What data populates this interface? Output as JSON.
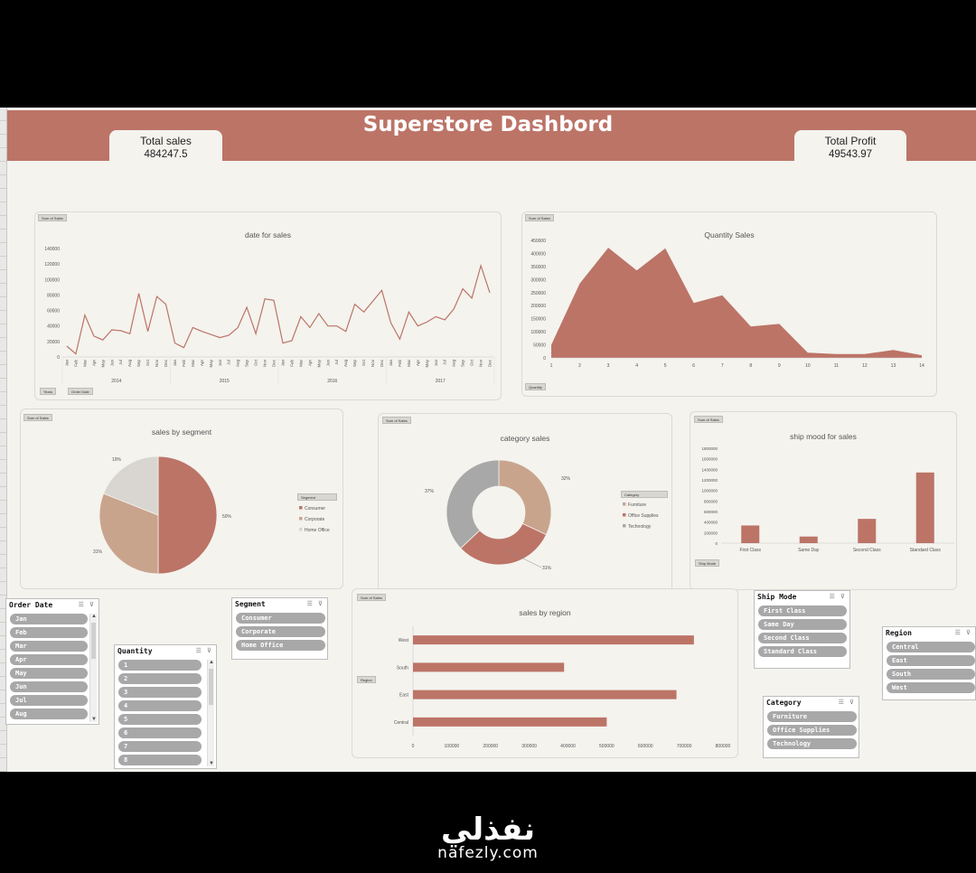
{
  "dashboard": {
    "title": "Superstore Dashbord",
    "kpis": {
      "total_sales": {
        "label": "Total sales",
        "value": "484247.5"
      },
      "total_profit": {
        "label": "Total Profit",
        "value": "49543.97"
      }
    },
    "accent_color": "#bc7467"
  },
  "charts": {
    "date_sales": {
      "chip": "Sum of Sales",
      "title": "date for sales",
      "y_ticks": [
        "140000",
        "120000",
        "100000",
        "80000",
        "60000",
        "40000",
        "20000",
        "0"
      ],
      "months": [
        "Jan",
        "Feb",
        "Mar",
        "Apr",
        "May",
        "Jun",
        "Jul",
        "Aug",
        "Sep",
        "Oct",
        "Nov",
        "Dec"
      ],
      "years": [
        "2014",
        "2015",
        "2016",
        "2017"
      ],
      "values": [
        14000,
        4000,
        54000,
        27000,
        22000,
        35000,
        34000,
        30000,
        82000,
        33000,
        78000,
        68000,
        18000,
        12000,
        38000,
        33000,
        29000,
        25000,
        28000,
        38000,
        64000,
        30000,
        75000,
        73000,
        18000,
        21000,
        52000,
        38000,
        56000,
        40000,
        40000,
        33000,
        68000,
        58000,
        72000,
        86000,
        44000,
        23000,
        58000,
        40000,
        45000,
        52000,
        48000,
        62000,
        88000,
        76000,
        118000,
        83000
      ],
      "filter_chips": [
        "Years",
        "Order Date"
      ]
    },
    "quantity_sales": {
      "chip": "Sum of Sales",
      "title": "Quantity Sales",
      "y_ticks": [
        "450000",
        "400000",
        "350000",
        "300000",
        "250000",
        "200000",
        "150000",
        "100000",
        "50000",
        "0"
      ],
      "x_ticks": [
        "1",
        "2",
        "3",
        "4",
        "5",
        "6",
        "7",
        "8",
        "9",
        "10",
        "11",
        "12",
        "13",
        "14"
      ],
      "values": [
        50000,
        285000,
        422000,
        335000,
        420000,
        210000,
        240000,
        120000,
        130000,
        20000,
        15000,
        15000,
        30000,
        10000
      ],
      "filter_chip": "Quantity"
    },
    "segment_sales": {
      "chip": "Sum of Sales",
      "title": "sales by segment",
      "labels": [
        "Consumer",
        "Corporate",
        "Home Office"
      ],
      "values": [
        50,
        31,
        19
      ],
      "pct_labels": [
        "50%",
        "31%",
        "19%"
      ],
      "colors": [
        "#bc7467",
        "#c9a48d",
        "#d9d6d2"
      ],
      "legend_title": "Segment"
    },
    "category_sales": {
      "chip": "Sum of Sales",
      "title": "category sales",
      "labels": [
        "Furniture",
        "Office Supplies",
        "Technology"
      ],
      "values": [
        32,
        31,
        37
      ],
      "pct_labels": [
        "32%",
        "31%",
        "37%"
      ],
      "colors": [
        "#c9a48d",
        "#bc7467",
        "#a8a8a8"
      ],
      "legend_title": "Category"
    },
    "ship_mode_sales": {
      "chip": "Sum of Sales",
      "title": "ship mood for sales",
      "y_ticks": [
        "1800000",
        "1600000",
        "1400000",
        "1200000",
        "1000000",
        "800000",
        "600000",
        "400000",
        "200000",
        "0"
      ],
      "categories": [
        "First Class",
        "Same Day",
        "Second Class",
        "Standard Class"
      ],
      "values": [
        335000,
        125000,
        460000,
        1340000
      ],
      "filter_chip": "Ship Mode"
    },
    "region_sales": {
      "chip": "Sum of Sales",
      "title": "sales by region",
      "categories": [
        "West",
        "South",
        "East",
        "Central"
      ],
      "values": [
        725000,
        390000,
        680000,
        500000
      ],
      "x_ticks": [
        "0",
        "100000",
        "200000",
        "300000",
        "400000",
        "500000",
        "600000",
        "700000",
        "800000"
      ],
      "filter_chip": "Region"
    }
  },
  "slicers": {
    "order_date": {
      "title": "Order Date",
      "items": [
        "Jan",
        "Feb",
        "Mar",
        "Apr",
        "May",
        "Jun",
        "Jul",
        "Aug"
      ]
    },
    "quantity": {
      "title": "Quantity",
      "items": [
        "1",
        "2",
        "3",
        "4",
        "5",
        "6",
        "7",
        "8"
      ]
    },
    "segment": {
      "title": "Segment",
      "items": [
        "Consumer",
        "Corporate",
        "Home Office"
      ]
    },
    "ship_mode": {
      "title": "Ship Mode",
      "items": [
        "First Class",
        "Same Day",
        "Second Class",
        "Standard Class"
      ]
    },
    "category": {
      "title": "Category",
      "items": [
        "Furniture",
        "Office Supplies",
        "Technology"
      ]
    },
    "region": {
      "title": "Region",
      "items": [
        "Central",
        "East",
        "South",
        "West"
      ]
    }
  },
  "watermark": {
    "arabic": "نفذلي",
    "latin": "nafezly.com"
  }
}
